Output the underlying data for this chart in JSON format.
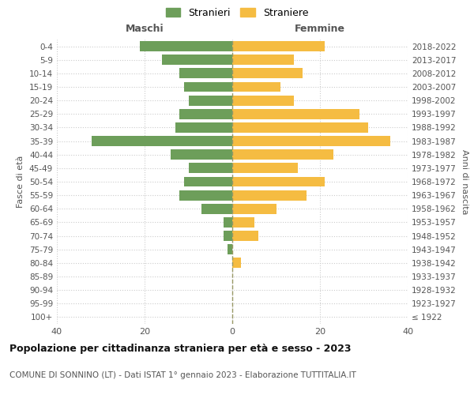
{
  "age_groups": [
    "100+",
    "95-99",
    "90-94",
    "85-89",
    "80-84",
    "75-79",
    "70-74",
    "65-69",
    "60-64",
    "55-59",
    "50-54",
    "45-49",
    "40-44",
    "35-39",
    "30-34",
    "25-29",
    "20-24",
    "15-19",
    "10-14",
    "5-9",
    "0-4"
  ],
  "birth_years": [
    "≤ 1922",
    "1923-1927",
    "1928-1932",
    "1933-1937",
    "1938-1942",
    "1943-1947",
    "1948-1952",
    "1953-1957",
    "1958-1962",
    "1963-1967",
    "1968-1972",
    "1973-1977",
    "1978-1982",
    "1983-1987",
    "1988-1992",
    "1993-1997",
    "1998-2002",
    "2003-2007",
    "2008-2012",
    "2013-2017",
    "2018-2022"
  ],
  "males": [
    0,
    0,
    0,
    0,
    0,
    1,
    2,
    2,
    7,
    12,
    11,
    10,
    14,
    32,
    13,
    12,
    10,
    11,
    12,
    16,
    21
  ],
  "females": [
    0,
    0,
    0,
    0,
    2,
    0,
    6,
    5,
    10,
    17,
    21,
    15,
    23,
    36,
    31,
    29,
    14,
    11,
    16,
    14,
    21
  ],
  "male_color": "#6d9e5a",
  "female_color": "#f5bc42",
  "male_label": "Stranieri",
  "female_label": "Straniere",
  "maschi_label": "Maschi",
  "femmine_label": "Femmine",
  "fasce_label": "Fasce di età",
  "anni_label": "Anni di nascita",
  "title": "Popolazione per cittadinanza straniera per età e sesso - 2023",
  "subtitle": "COMUNE DI SONNINO (LT) - Dati ISTAT 1° gennaio 2023 - Elaborazione TUTTITALIA.IT",
  "xlim": 40,
  "background_color": "#ffffff",
  "grid_color": "#cccccc",
  "center_line_color": "#999966"
}
